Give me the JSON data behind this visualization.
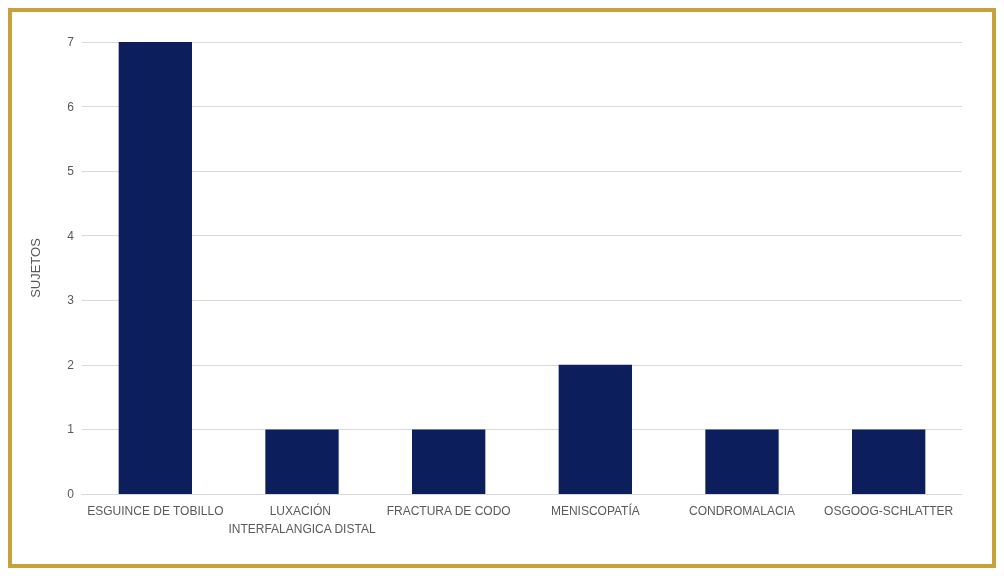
{
  "chart_data": {
    "type": "bar",
    "ylabel": "SUJETOS",
    "categories": [
      "ESGUINCE DE TOBILLO",
      "LUXACIÓN INTERFALANGICA DISTAL",
      "FRACTURA DE CODO",
      "MENISCOPATÍA",
      "CONDROMALACIA",
      "OSGOOG-SCHLATTER"
    ],
    "values": [
      7,
      1,
      1,
      2,
      1,
      1
    ],
    "color": "#0c1f5c",
    "ylim": [
      0,
      7
    ],
    "yticks": [
      0,
      1,
      2,
      3,
      4,
      5,
      6,
      7
    ],
    "grid": "y"
  }
}
